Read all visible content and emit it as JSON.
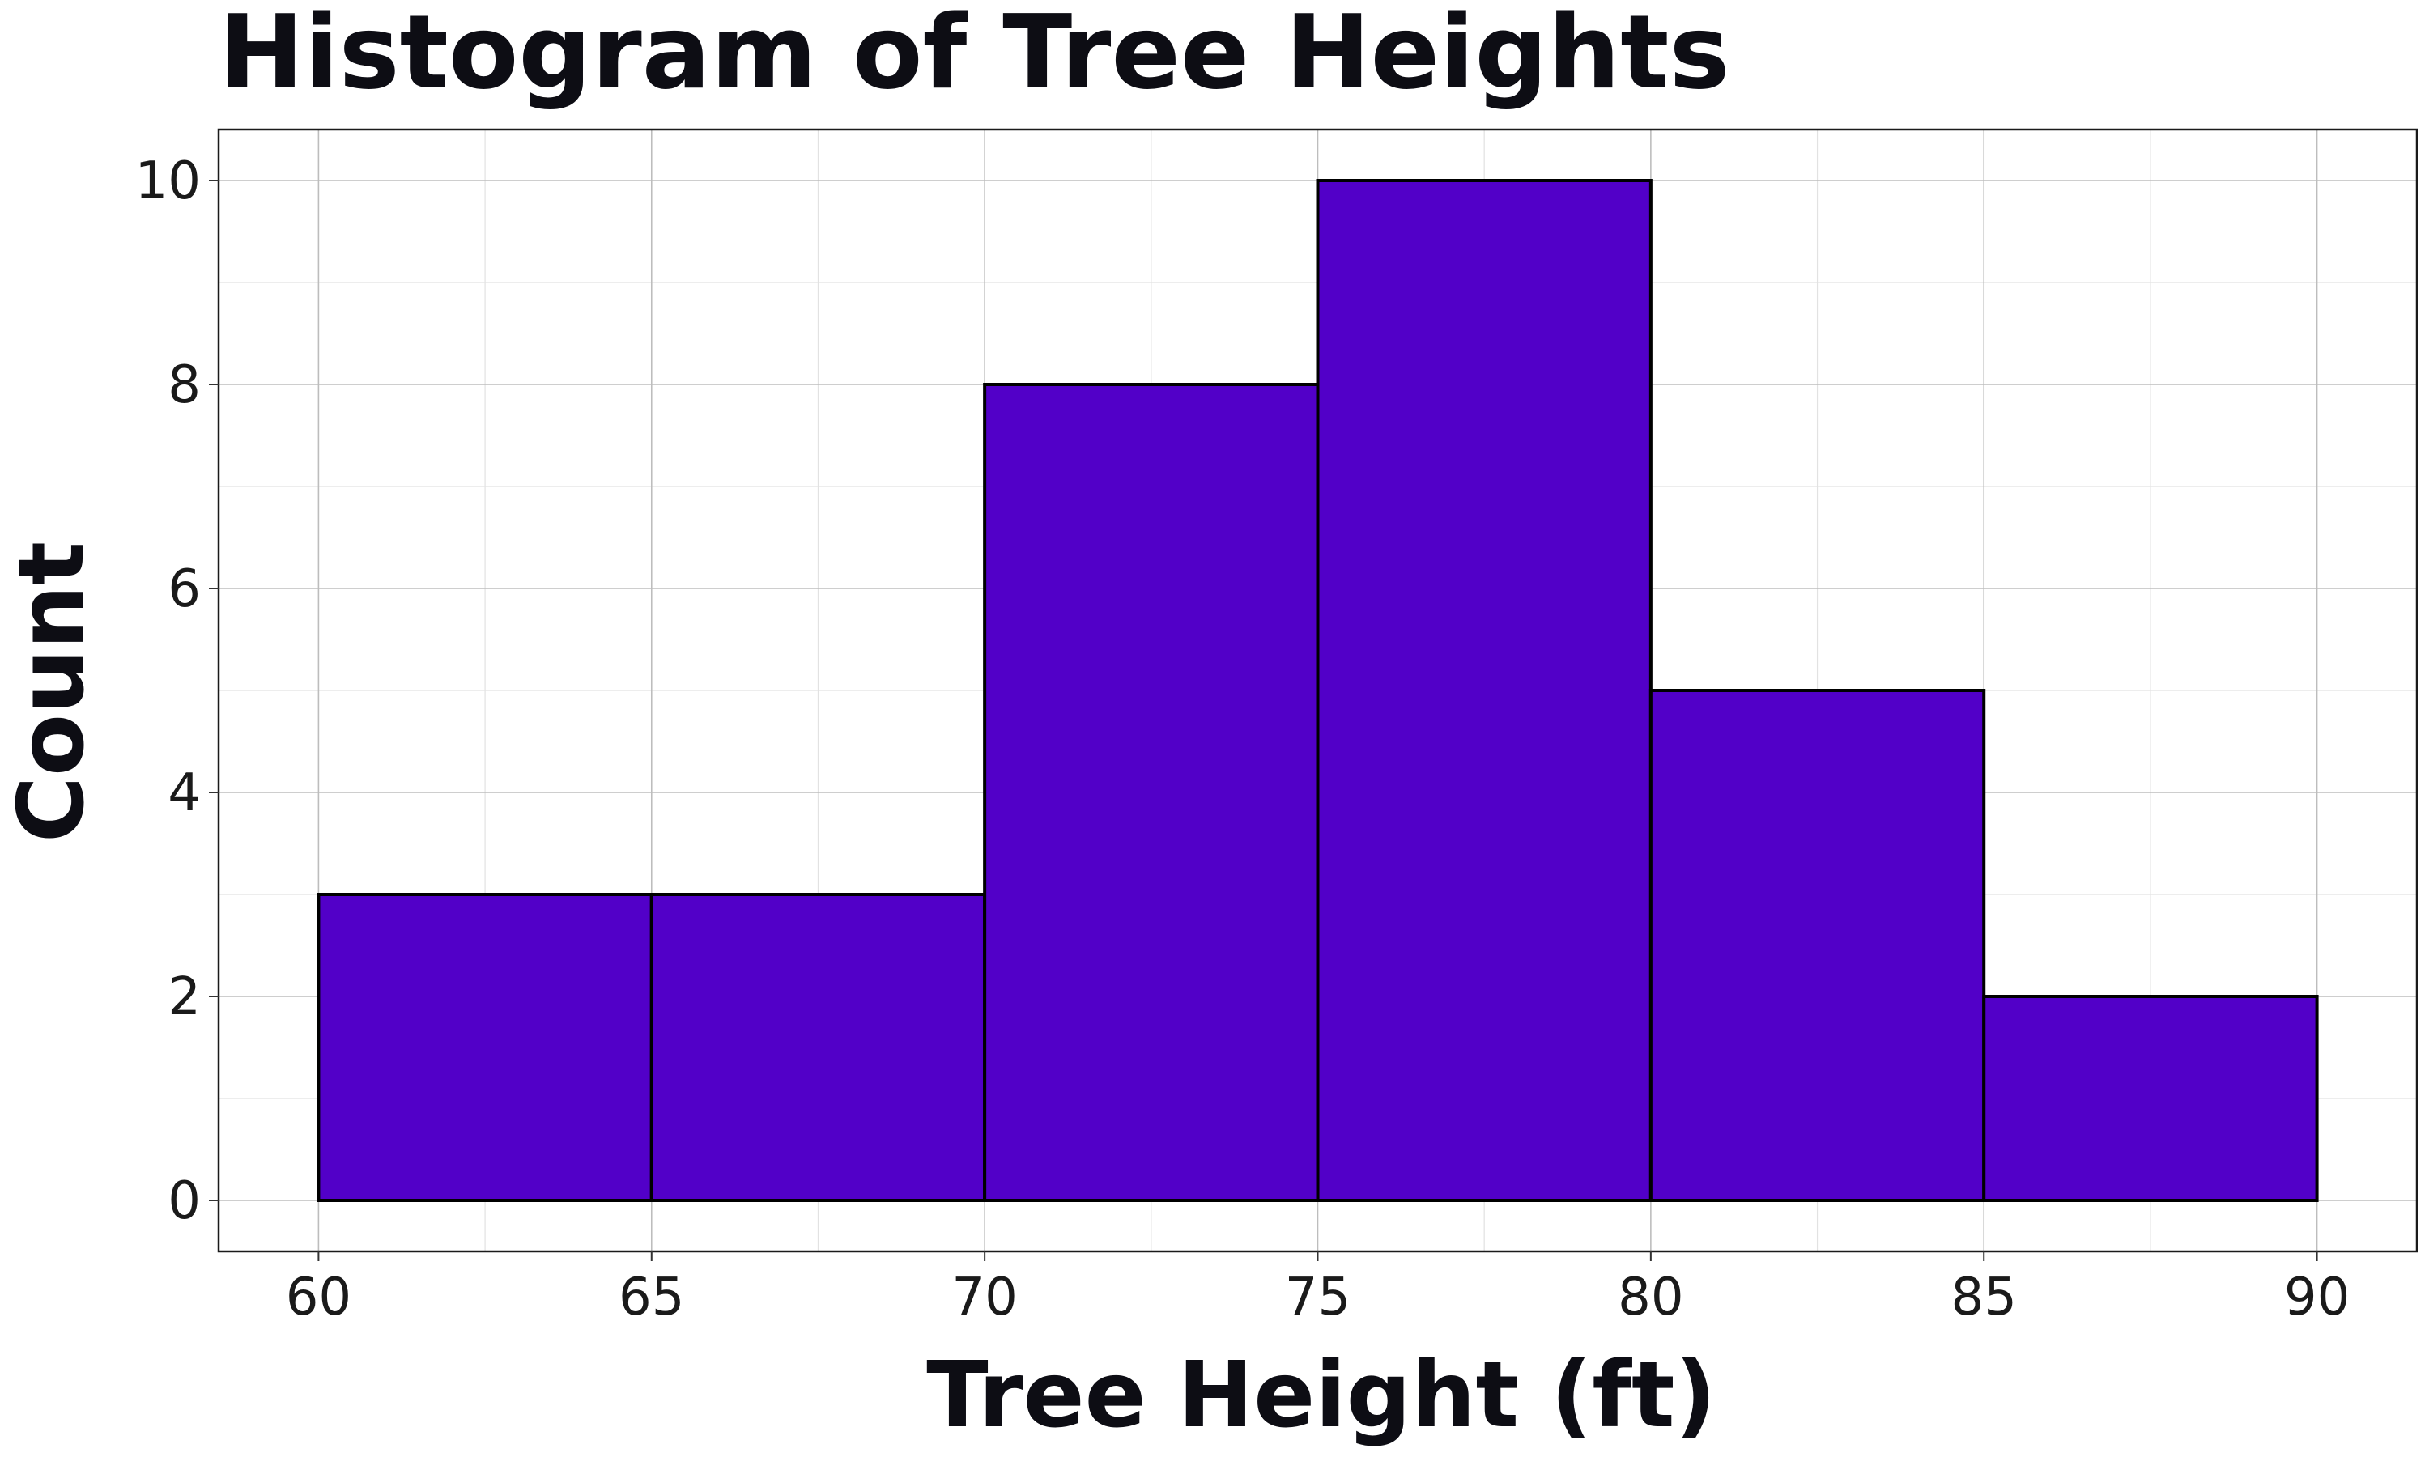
{
  "chart_data": {
    "type": "bar",
    "title": "Histogram of Tree Heights",
    "xlabel": "Tree Height (ft)",
    "ylabel": "Count",
    "bins": [
      {
        "start": 60,
        "end": 65,
        "count": 3
      },
      {
        "start": 65,
        "end": 70,
        "count": 3
      },
      {
        "start": 70,
        "end": 75,
        "count": 8
      },
      {
        "start": 75,
        "end": 80,
        "count": 10
      },
      {
        "start": 80,
        "end": 85,
        "count": 5
      },
      {
        "start": 85,
        "end": 90,
        "count": 2
      }
    ],
    "xlim": [
      58.5,
      91.5
    ],
    "ylim": [
      -0.5,
      10.5
    ],
    "xticks": [
      60,
      65,
      70,
      75,
      80,
      85,
      90
    ],
    "yticks": [
      0,
      2,
      4,
      6,
      8,
      10
    ],
    "x_minor_ticks": [
      62.5,
      67.5,
      72.5,
      77.5,
      82.5,
      87.5
    ],
    "y_minor_ticks": [
      1,
      3,
      5,
      7,
      9
    ],
    "grid": true,
    "legend": "none",
    "bar_color": "#5200C8",
    "bar_edge_color": "#000000"
  }
}
